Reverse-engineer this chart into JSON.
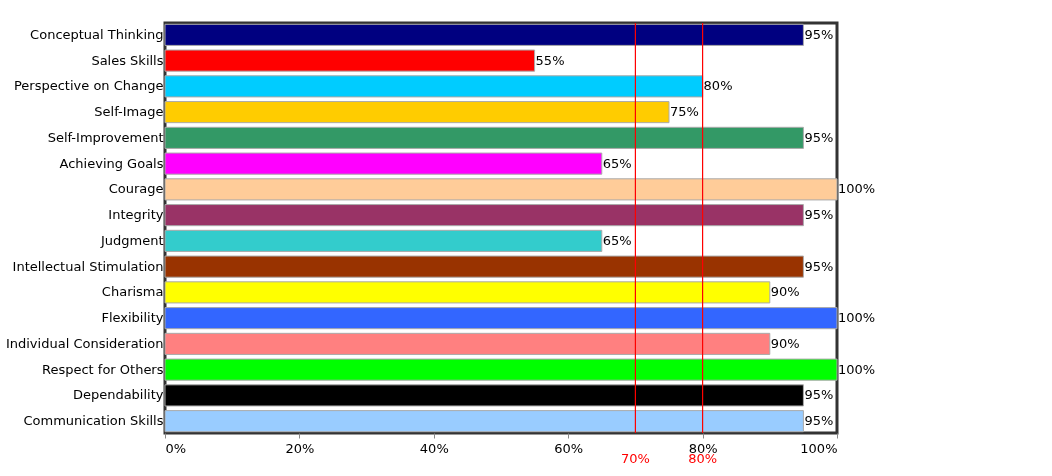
{
  "chart_data": {
    "type": "bar",
    "orientation": "horizontal",
    "categories": [
      "Conceptual Thinking",
      "Sales Skills",
      "Perspective on Change",
      "Self-Image",
      "Self-Improvement",
      "Achieving Goals",
      "Courage",
      "Integrity",
      "Judgment",
      "Intellectual Stimulation",
      "Charisma",
      "Flexibility",
      "Individual Consideration",
      "Respect for Others",
      "Dependability",
      "Communication Skills"
    ],
    "values": [
      95,
      55,
      80,
      75,
      95,
      65,
      100,
      95,
      65,
      95,
      90,
      100,
      90,
      100,
      95,
      95
    ],
    "colors": [
      "#000080",
      "#ff0000",
      "#00ccff",
      "#ffcc00",
      "#339966",
      "#ff00ff",
      "#ffcc99",
      "#993366",
      "#33cccc",
      "#993300",
      "#ffff00",
      "#3366ff",
      "#ff8080",
      "#00ff00",
      "#000000",
      "#99ccff"
    ],
    "value_labels": [
      "95%",
      "55%",
      "80%",
      "75%",
      "95%",
      "65%",
      "100%",
      "95%",
      "65%",
      "95%",
      "90%",
      "100%",
      "90%",
      "100%",
      "95%",
      "95%"
    ],
    "xlim": [
      0,
      100
    ],
    "xticks": [
      {
        "value": 0,
        "label": "0%"
      },
      {
        "value": 20,
        "label": "20%"
      },
      {
        "value": 40,
        "label": "40%"
      },
      {
        "value": 60,
        "label": "60%"
      },
      {
        "value": 80,
        "label": "80%"
      },
      {
        "value": 100,
        "label": "100%"
      }
    ],
    "ref_lines": [
      {
        "axis": "x",
        "value": 70,
        "label": "70%",
        "color": "#ff0000"
      },
      {
        "axis": "x",
        "value": 80,
        "label": "80%",
        "color": "#ff0000"
      }
    ],
    "grid": false
  }
}
